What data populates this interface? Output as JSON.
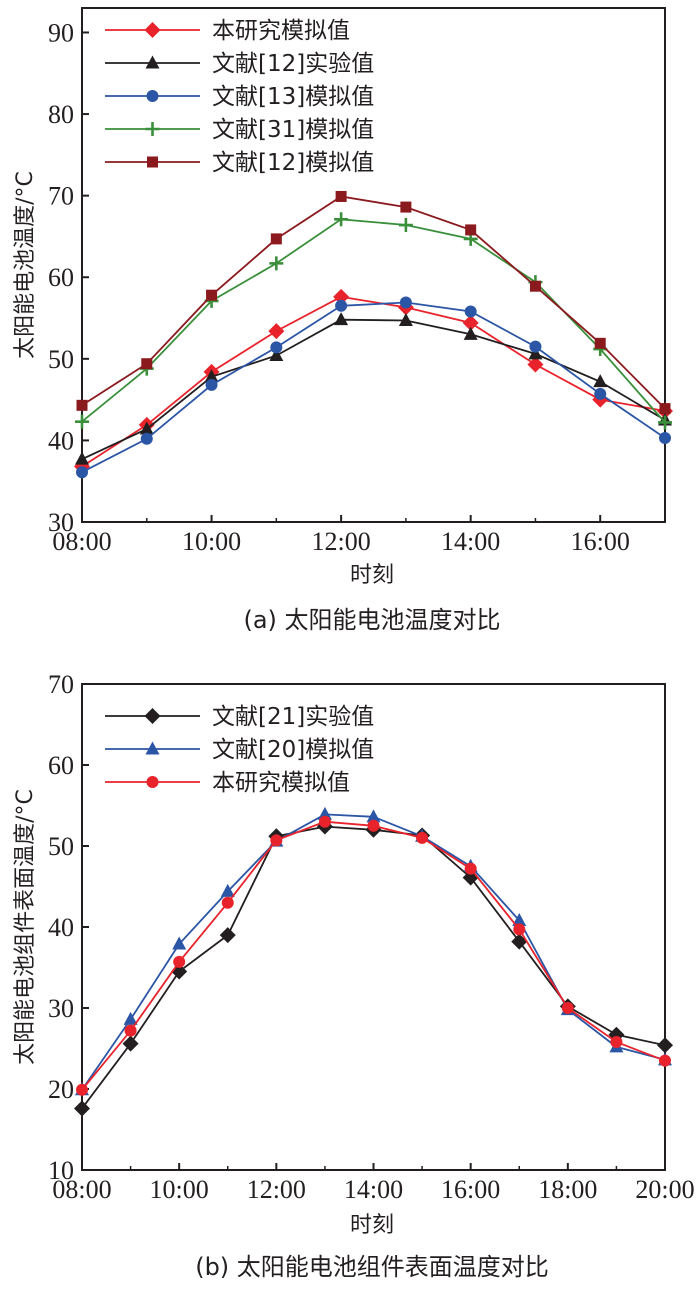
{
  "chart_data": [
    {
      "type": "line",
      "caption": "(a) 太阳能电池温度对比",
      "xlabel": "时刻",
      "ylabel": "太阳能电池温度/°C",
      "x_ticks": [
        "08:00",
        "10:00",
        "12:00",
        "14:00",
        "16:00"
      ],
      "x_hours": [
        8,
        9,
        10,
        11,
        12,
        13,
        14,
        15,
        16,
        17
      ],
      "xlim": [
        8,
        17
      ],
      "ylim": [
        30,
        93
      ],
      "y_ticks": [
        30,
        40,
        50,
        60,
        70,
        80,
        90
      ],
      "grid": false,
      "legend_position": "top-left",
      "series": [
        {
          "name": "本研究模拟值",
          "color": "#e8232b",
          "marker": "diamond",
          "values": [
            36.8,
            41.9,
            48.4,
            53.4,
            57.6,
            56.3,
            54.4,
            49.3,
            45.0,
            43.6
          ]
        },
        {
          "name": "文献[12]实验值",
          "color": "#231f20",
          "marker": "triangle",
          "values": [
            37.7,
            41.4,
            47.8,
            50.4,
            54.8,
            54.7,
            53.0,
            50.6,
            47.2,
            42.5
          ]
        },
        {
          "name": "文献[13]模拟值",
          "color": "#2b55a5",
          "marker": "circle",
          "values": [
            36.1,
            40.2,
            46.8,
            51.4,
            56.5,
            56.9,
            55.8,
            51.5,
            45.7,
            40.3
          ]
        },
        {
          "name": "文献[31]模拟值",
          "color": "#3a8f3a",
          "marker": "plus",
          "values": [
            42.3,
            48.8,
            57.1,
            61.7,
            67.1,
            66.4,
            64.7,
            59.4,
            51.2,
            42.2
          ]
        },
        {
          "name": "文献[12]模拟值",
          "color": "#8b1a1e",
          "marker": "square",
          "values": [
            44.3,
            49.4,
            57.8,
            64.7,
            69.9,
            68.6,
            65.8,
            58.9,
            51.9,
            43.9
          ]
        }
      ]
    },
    {
      "type": "line",
      "caption": "(b) 太阳能电池组件表面温度对比",
      "xlabel": "时刻",
      "ylabel": "太阳能电池组件表面温度/°C",
      "x_ticks": [
        "08:00",
        "10:00",
        "12:00",
        "14:00",
        "16:00",
        "18:00",
        "20:00"
      ],
      "x_hours": [
        8,
        9,
        10,
        11,
        12,
        13,
        14,
        15,
        16,
        17,
        18,
        19,
        20
      ],
      "xlim": [
        8,
        20
      ],
      "ylim": [
        10,
        70
      ],
      "y_ticks": [
        10,
        20,
        30,
        40,
        50,
        60,
        70
      ],
      "grid": false,
      "legend_position": "top-left",
      "series": [
        {
          "name": "文献[21]实验值",
          "color": "#231f20",
          "marker": "diamond",
          "values": [
            17.6,
            25.6,
            34.5,
            39.0,
            51.2,
            52.4,
            52.0,
            51.3,
            46.1,
            38.2,
            30.2,
            26.7,
            25.4
          ]
        },
        {
          "name": "文献[20]模拟值",
          "color": "#2b55a5",
          "marker": "triangle",
          "values": [
            19.9,
            28.6,
            37.9,
            44.4,
            50.6,
            53.9,
            53.6,
            51.2,
            47.5,
            40.8,
            29.8,
            25.2,
            23.6
          ]
        },
        {
          "name": "本研究模拟值",
          "color": "#e8232b",
          "marker": "circle",
          "values": [
            19.9,
            27.2,
            35.7,
            43.0,
            50.7,
            53.0,
            52.5,
            51.0,
            47.2,
            39.7,
            30.0,
            25.8,
            23.5
          ]
        }
      ]
    }
  ]
}
